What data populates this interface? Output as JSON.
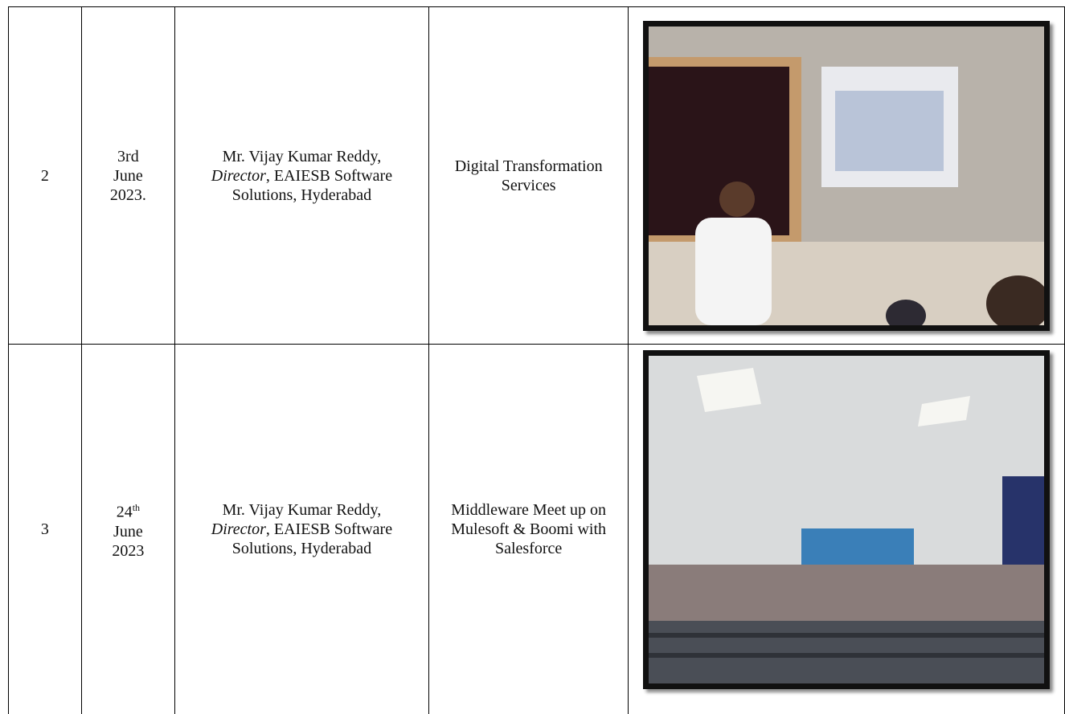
{
  "table": {
    "rows": [
      {
        "sno": "2",
        "date": {
          "day": "3rd",
          "day_suffix": null,
          "month": "June",
          "year": "2023."
        },
        "resource_person": {
          "before": "Mr. Vijay Kumar Reddy, ",
          "designation": "Director",
          "after": ", EAIESB Software Solutions, Hyderabad"
        },
        "topic": "Digital Transformation Services"
      },
      {
        "sno": "3",
        "date": {
          "day": "24",
          "day_suffix": "th",
          "month": "June",
          "year": "2023"
        },
        "resource_person": {
          "before": "Mr. Vijay Kumar Reddy, ",
          "designation": "Director",
          "after": ", EAIESB Software Solutions, Hyderabad"
        },
        "topic": "Middleware Meet up on Mulesoft & Boomi with Salesforce"
      }
    ]
  }
}
